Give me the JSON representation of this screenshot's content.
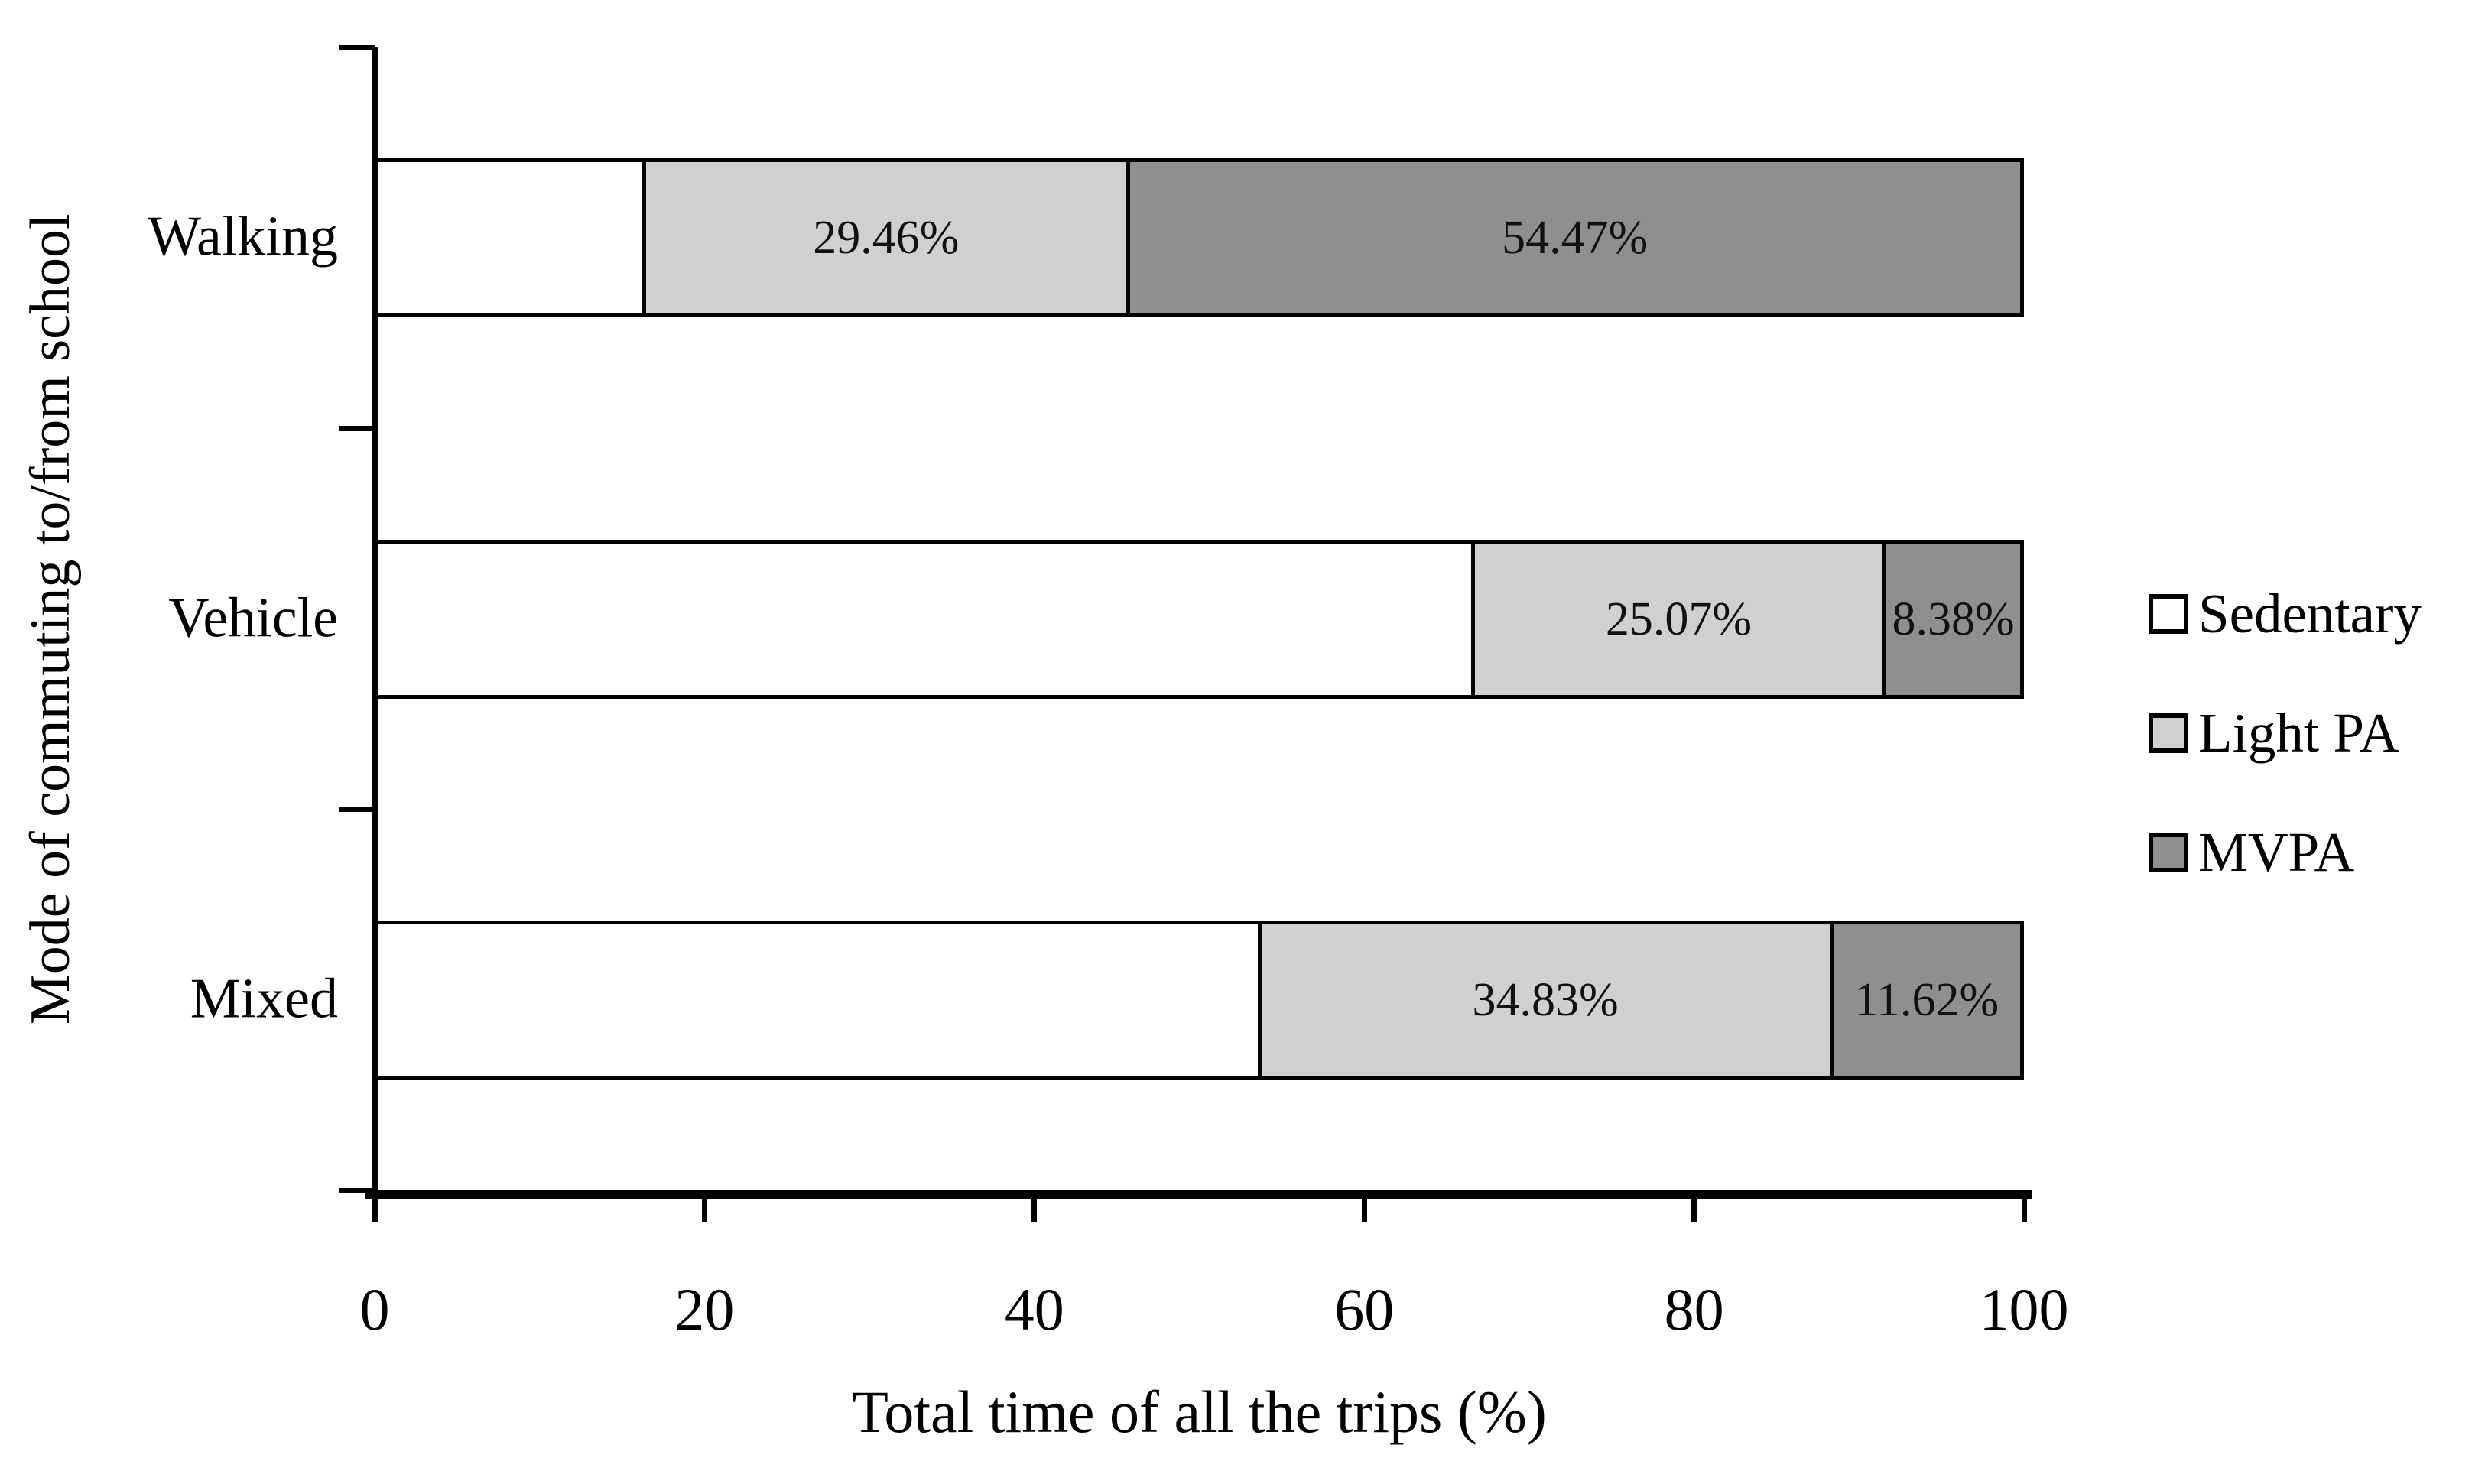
{
  "figure": {
    "background": "#ffffff",
    "axis_color": "#000000",
    "text_color": "#000000"
  },
  "chart_data": {
    "type": "bar",
    "orientation": "horizontal",
    "stacked": true,
    "title": "",
    "xlabel": "Total time of all the trips (%)",
    "ylabel": "Mode of commuting to/from school",
    "categories": [
      "Walking",
      "Vehicle",
      "Mixed"
    ],
    "series": [
      {
        "name": "Sedentary",
        "color": "#ffffff",
        "values": [
          16.07,
          66.55,
          53.55
        ],
        "data_labels": [
          "",
          "",
          ""
        ]
      },
      {
        "name": "Light PA",
        "color": "#d0d0d0",
        "values": [
          29.46,
          25.07,
          34.83
        ],
        "data_labels": [
          "29.46%",
          "25.07%",
          "34.83%"
        ]
      },
      {
        "name": "MVPA",
        "color": "#8f8f8f",
        "values": [
          54.47,
          8.38,
          11.62
        ],
        "data_labels": [
          "54.47%",
          "8.38%",
          "11.62%"
        ]
      }
    ],
    "xlim": [
      0,
      100
    ],
    "xticks": [
      "0",
      "20",
      "40",
      "60",
      "80",
      "100"
    ],
    "grid": false,
    "legend": {
      "position": "right",
      "entries": [
        "Sedentary",
        "Light PA",
        "MVPA"
      ]
    }
  }
}
